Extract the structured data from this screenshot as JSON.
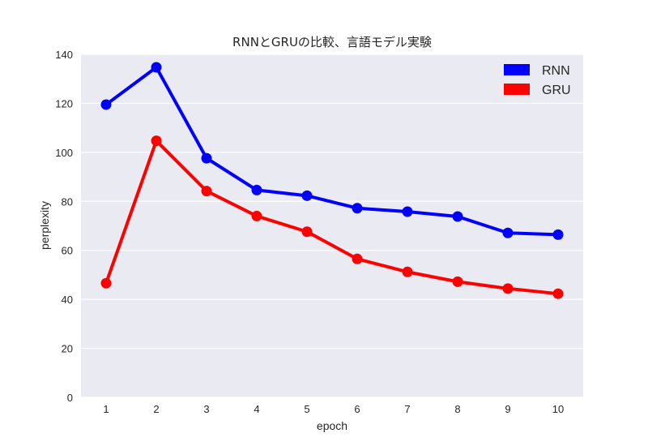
{
  "chart_data": {
    "type": "line",
    "title": "RNNとGRUの比較、言語モデル実験",
    "xlabel": "epoch",
    "ylabel": "perplexity",
    "categories": [
      "1",
      "2",
      "3",
      "4",
      "5",
      "6",
      "7",
      "8",
      "9",
      "10"
    ],
    "ylim": [
      0,
      140
    ],
    "yticks": [
      0,
      20,
      40,
      60,
      80,
      100,
      120,
      140
    ],
    "grid": true,
    "legend_position": "top-right",
    "series": [
      {
        "name": "RNN",
        "color": "#0000ff",
        "values": [
          119.5,
          134.7,
          97.6,
          84.6,
          82.3,
          77.2,
          75.8,
          73.8,
          67.1,
          66.4
        ]
      },
      {
        "name": "GRU",
        "color": "#ff0000",
        "values": [
          46.6,
          104.7,
          84.2,
          74.0,
          67.6,
          56.5,
          51.2,
          47.2,
          44.4,
          42.3
        ]
      }
    ]
  }
}
